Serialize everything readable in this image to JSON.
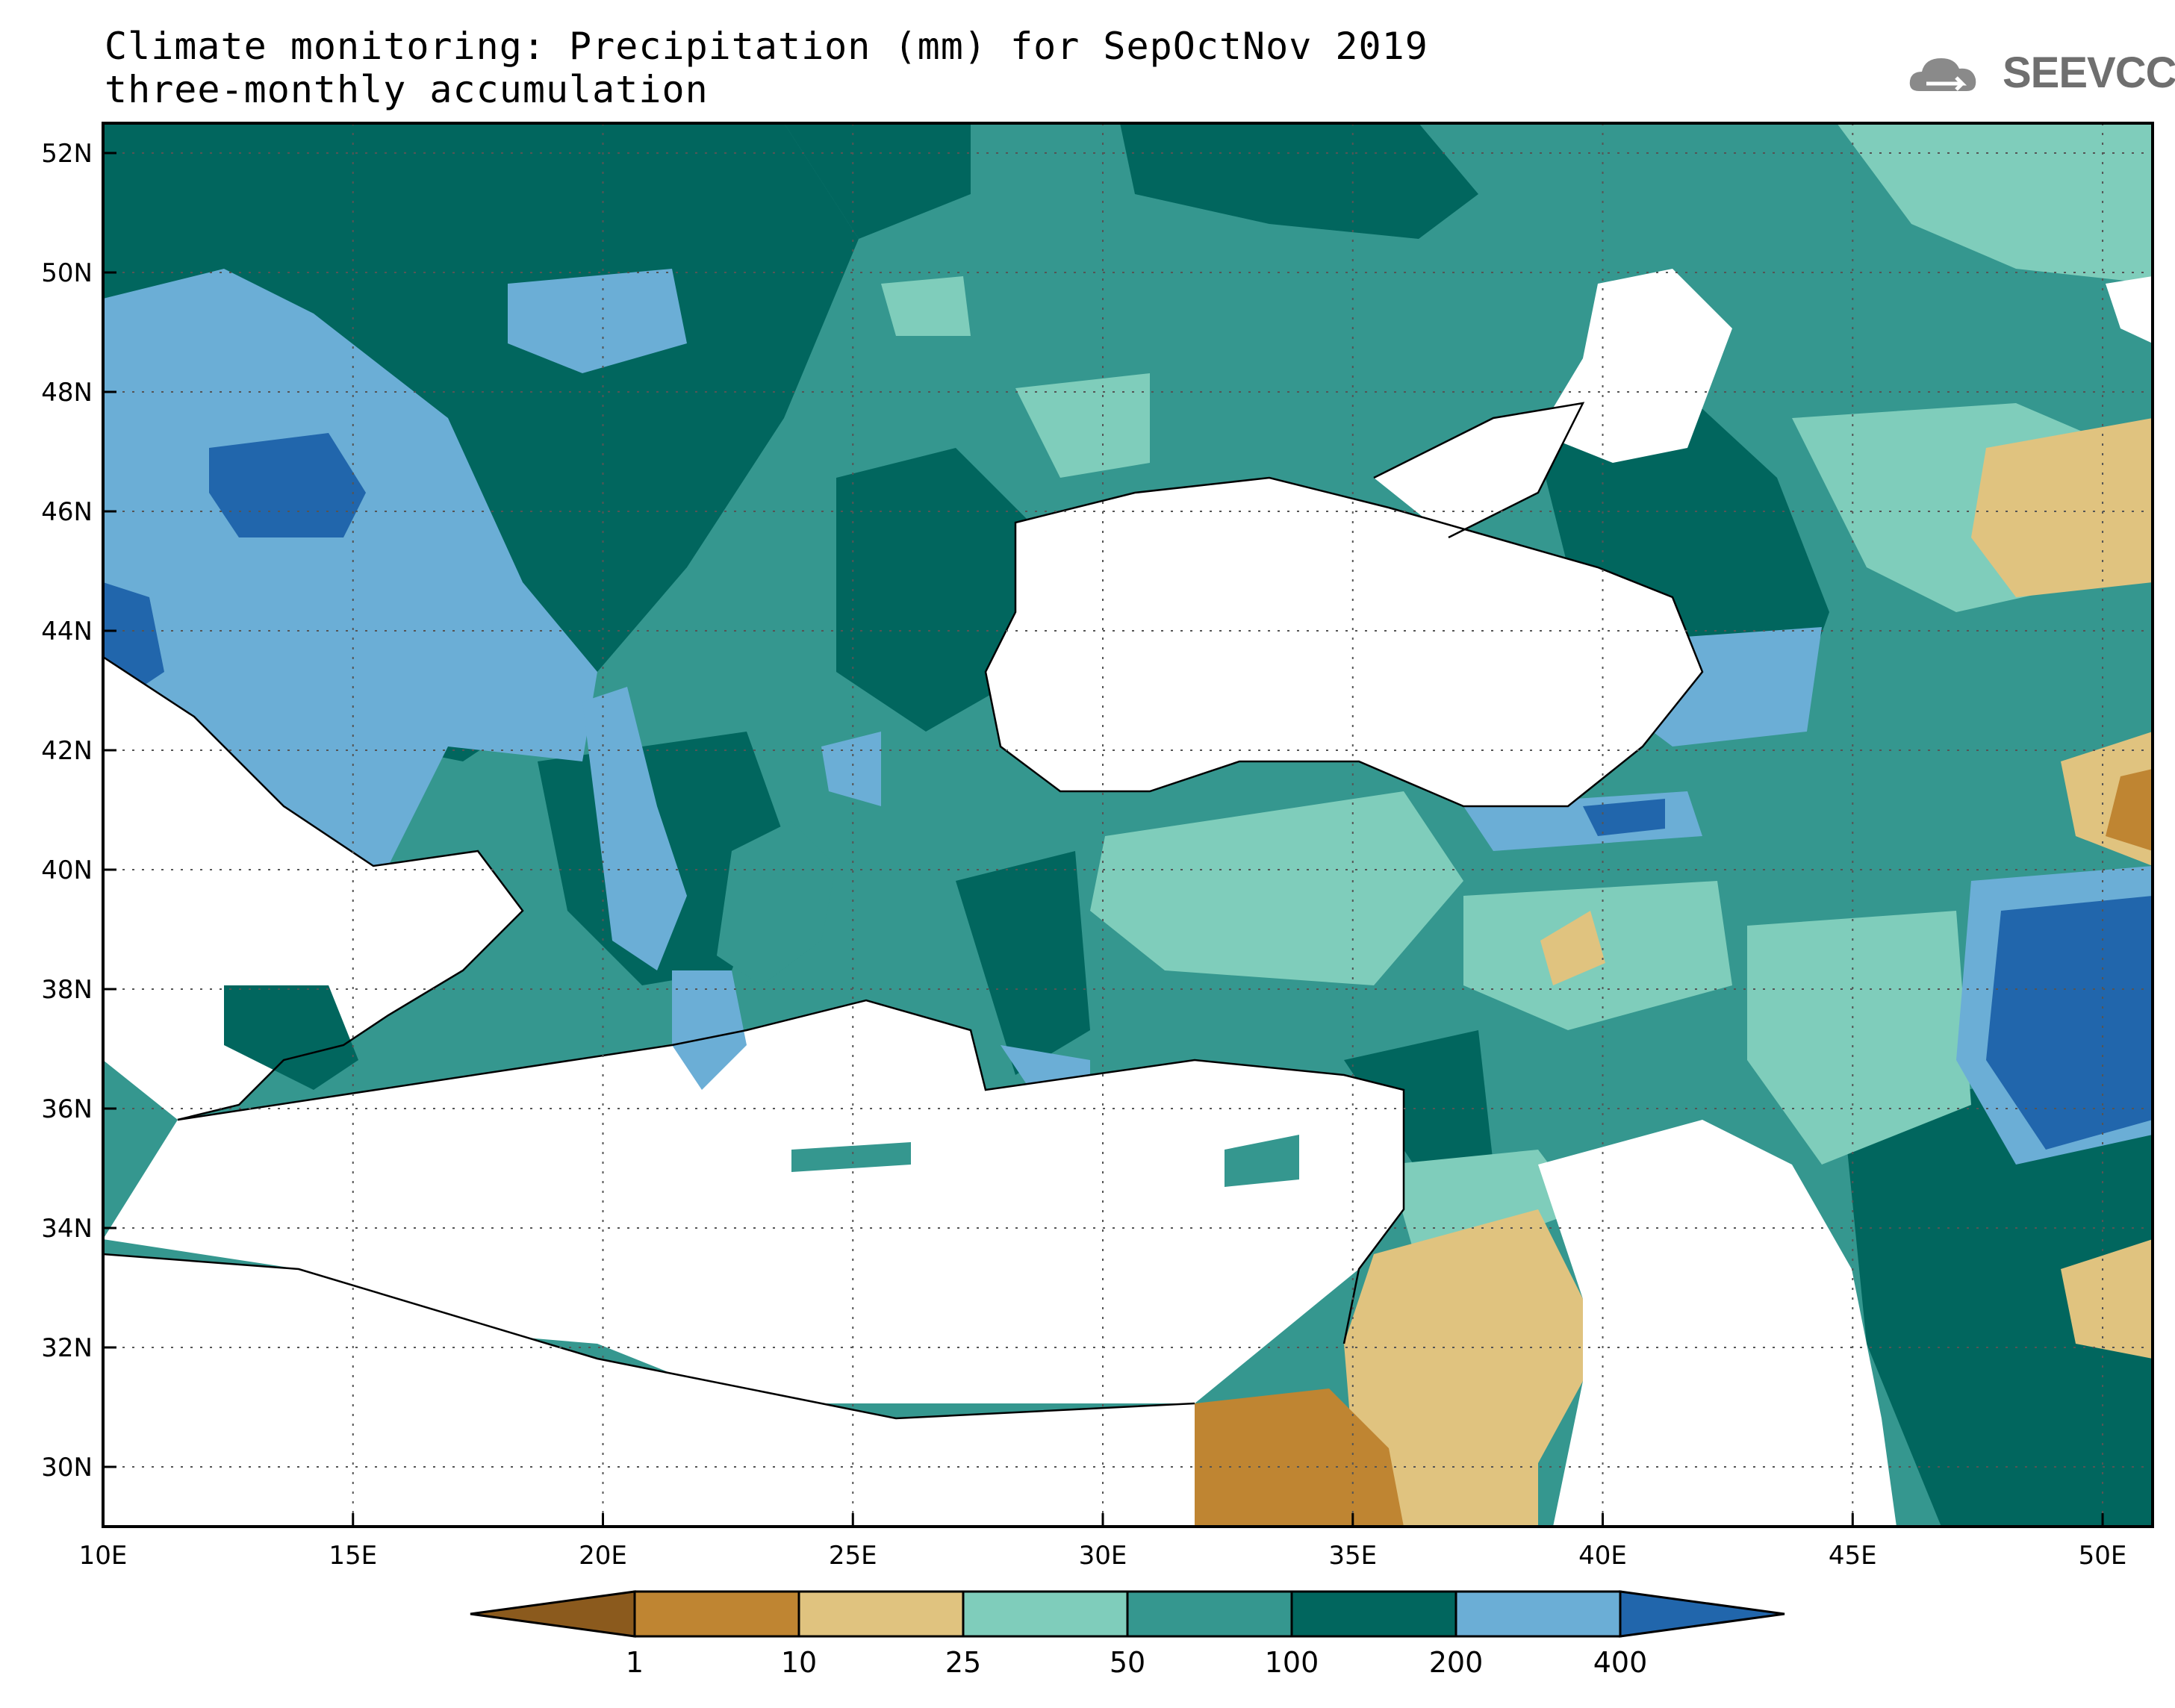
{
  "title": {
    "line1": "Climate monitoring: Precipitation (mm) for SepOctNov 2019",
    "line2": "three-monthly accumulation"
  },
  "logo": {
    "text": "SEEVCCC",
    "icon": "cloud-icon"
  },
  "map": {
    "lon_range": [
      10,
      51
    ],
    "lat_range": [
      29,
      52.5
    ],
    "lon_ticks": [
      "10E",
      "15E",
      "20E",
      "25E",
      "30E",
      "35E",
      "40E",
      "45E",
      "50E"
    ],
    "lat_ticks": [
      "30N",
      "32N",
      "34N",
      "36N",
      "38N",
      "40N",
      "42N",
      "44N",
      "46N",
      "48N",
      "50N",
      "52N"
    ],
    "grid": "dotted"
  },
  "colorbar": {
    "levels": [
      "1",
      "10",
      "25",
      "50",
      "100",
      "200",
      "400"
    ],
    "colors": [
      "#8b5a1d",
      "#bf8532",
      "#e0c37f",
      "#7fcdbb",
      "#35978f",
      "#01665e",
      "#6baed6",
      "#2166ac"
    ]
  }
}
